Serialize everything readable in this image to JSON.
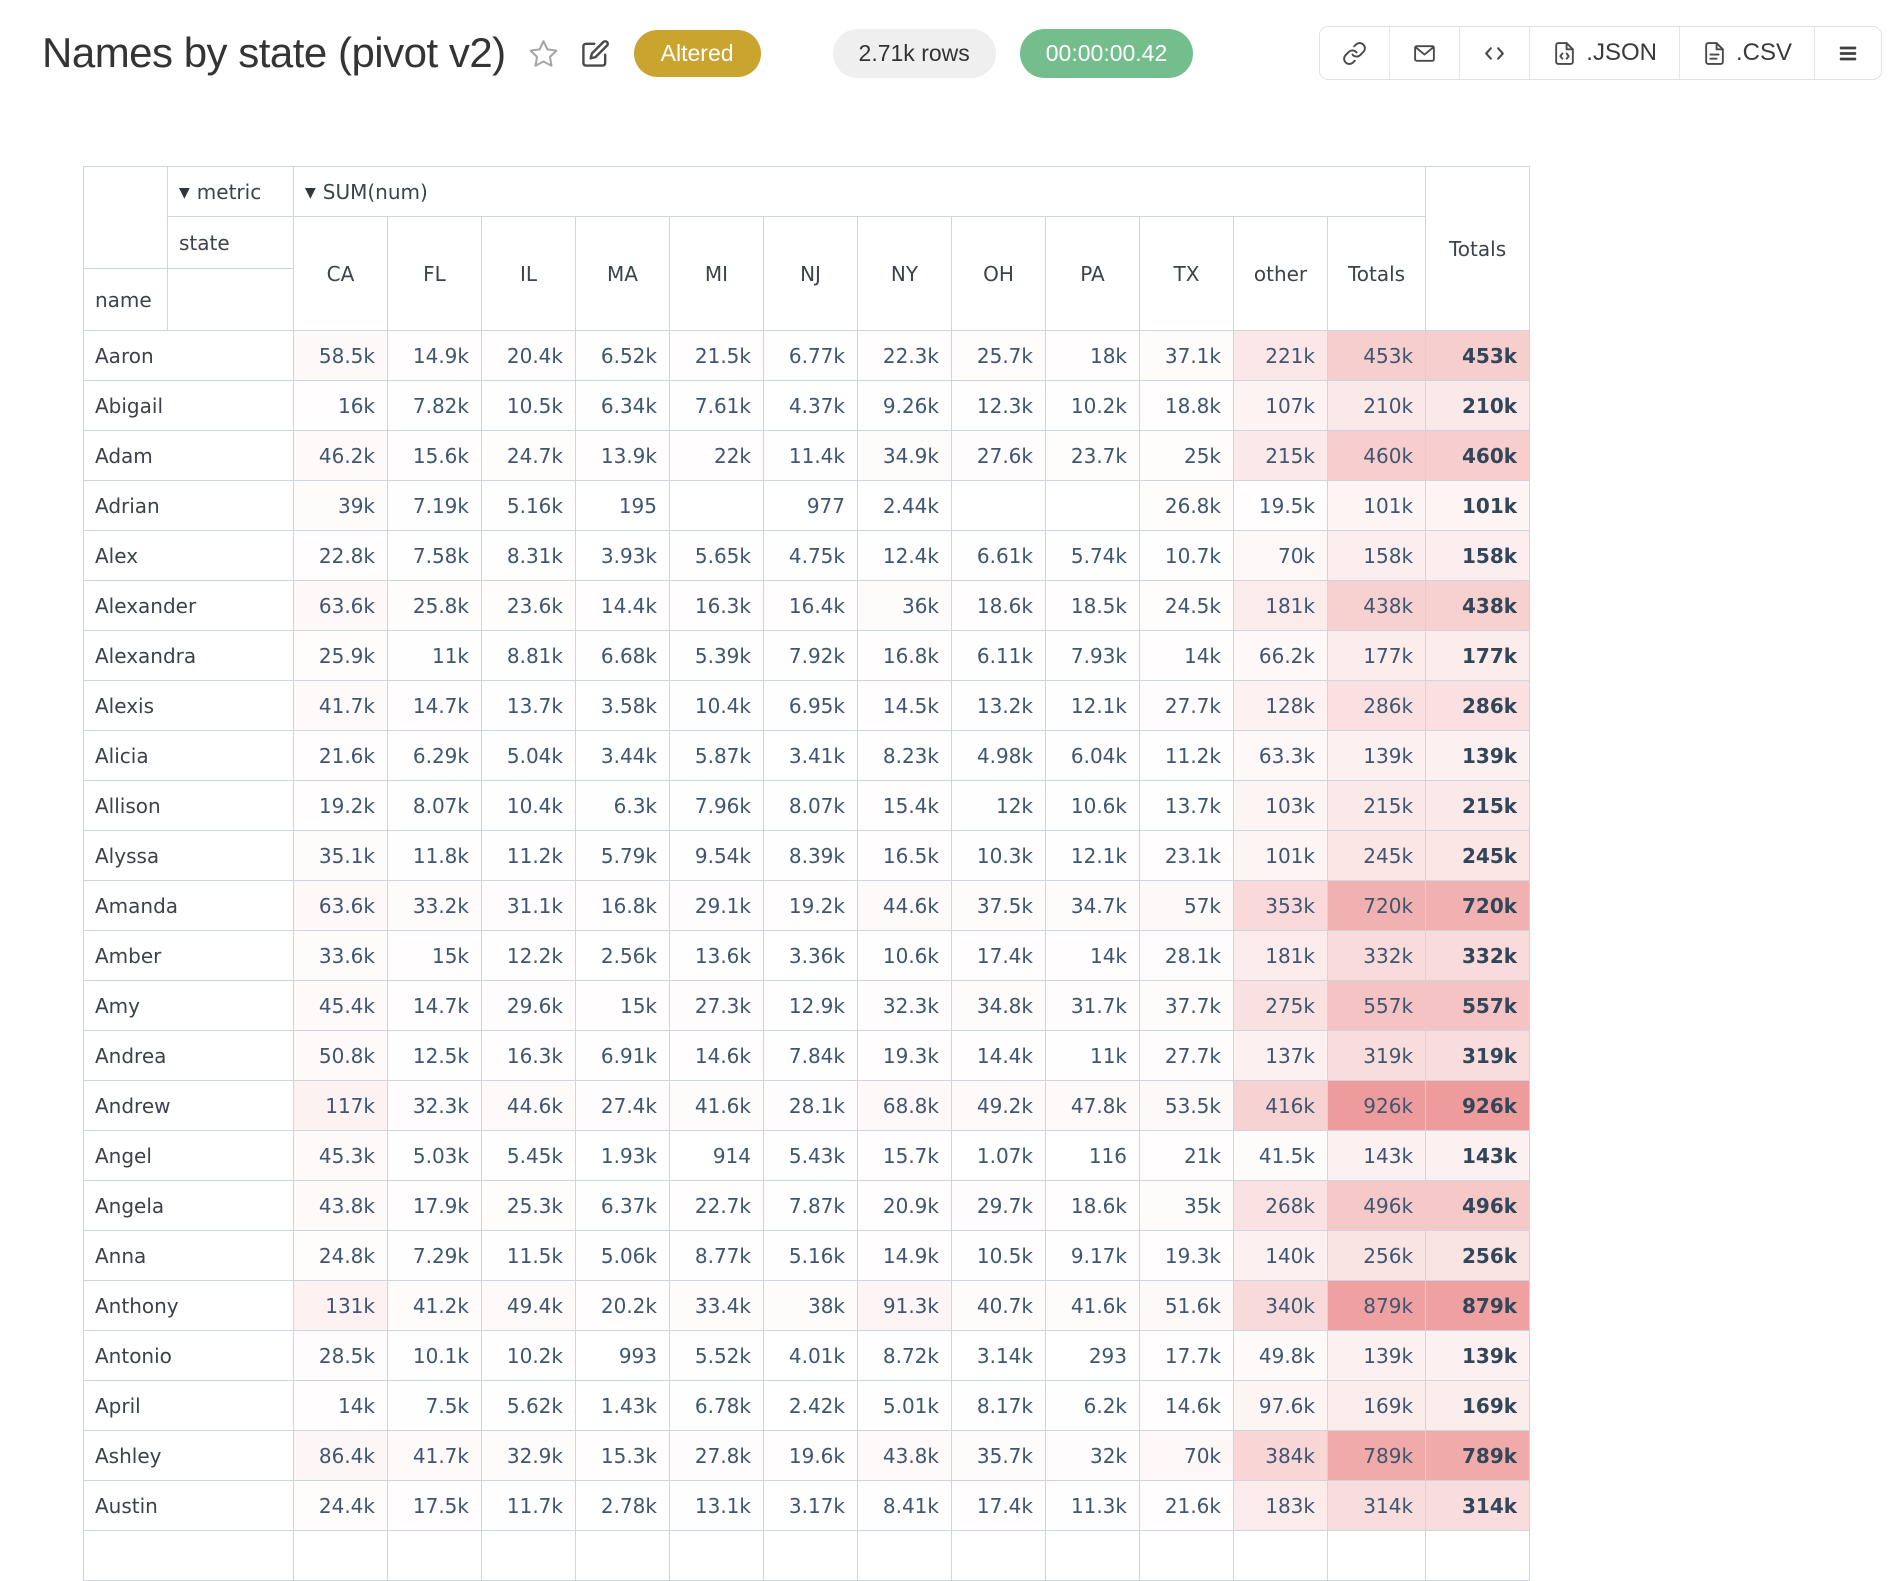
{
  "header": {
    "title": "Names by state (pivot v2)",
    "altered_badge": "Altered",
    "rows_pill": "2.71k rows",
    "timer_pill": "00:00:00.42",
    "json_button_label": ".JSON",
    "csv_button_label": ".CSV",
    "colors": {
      "altered_bg": "#c9a42f",
      "timer_bg": "#74bd8c",
      "rows_pill_bg": "#efefef"
    }
  },
  "pivot": {
    "sort_arrow": "▼",
    "metric_label": "metric",
    "sum_label": "SUM(num)",
    "state_label": "state",
    "name_label": "name",
    "inner_totals_label": "Totals",
    "outer_totals_label": "Totals",
    "columns": [
      "CA",
      "FL",
      "IL",
      "MA",
      "MI",
      "NJ",
      "NY",
      "OH",
      "PA",
      "TX",
      "other",
      "Totals"
    ],
    "heat_max_color": "#ee9b9b",
    "grid_color": "#ccd6e0",
    "rows": [
      {
        "name": "Aaron",
        "cells": [
          "58.5k",
          "14.9k",
          "20.4k",
          "6.52k",
          "21.5k",
          "6.77k",
          "22.3k",
          "25.7k",
          "18k",
          "37.1k",
          "221k",
          "453k"
        ],
        "total": "453k"
      },
      {
        "name": "Abigail",
        "cells": [
          "16k",
          "7.82k",
          "10.5k",
          "6.34k",
          "7.61k",
          "4.37k",
          "9.26k",
          "12.3k",
          "10.2k",
          "18.8k",
          "107k",
          "210k"
        ],
        "total": "210k"
      },
      {
        "name": "Adam",
        "cells": [
          "46.2k",
          "15.6k",
          "24.7k",
          "13.9k",
          "22k",
          "11.4k",
          "34.9k",
          "27.6k",
          "23.7k",
          "25k",
          "215k",
          "460k"
        ],
        "total": "460k"
      },
      {
        "name": "Adrian",
        "cells": [
          "39k",
          "7.19k",
          "5.16k",
          "195",
          "",
          "977",
          "2.44k",
          "",
          "",
          "26.8k",
          "19.5k",
          "101k"
        ],
        "total": "101k"
      },
      {
        "name": "Alex",
        "cells": [
          "22.8k",
          "7.58k",
          "8.31k",
          "3.93k",
          "5.65k",
          "4.75k",
          "12.4k",
          "6.61k",
          "5.74k",
          "10.7k",
          "70k",
          "158k"
        ],
        "total": "158k"
      },
      {
        "name": "Alexander",
        "cells": [
          "63.6k",
          "25.8k",
          "23.6k",
          "14.4k",
          "16.3k",
          "16.4k",
          "36k",
          "18.6k",
          "18.5k",
          "24.5k",
          "181k",
          "438k"
        ],
        "total": "438k"
      },
      {
        "name": "Alexandra",
        "cells": [
          "25.9k",
          "11k",
          "8.81k",
          "6.68k",
          "5.39k",
          "7.92k",
          "16.8k",
          "6.11k",
          "7.93k",
          "14k",
          "66.2k",
          "177k"
        ],
        "total": "177k"
      },
      {
        "name": "Alexis",
        "cells": [
          "41.7k",
          "14.7k",
          "13.7k",
          "3.58k",
          "10.4k",
          "6.95k",
          "14.5k",
          "13.2k",
          "12.1k",
          "27.7k",
          "128k",
          "286k"
        ],
        "total": "286k"
      },
      {
        "name": "Alicia",
        "cells": [
          "21.6k",
          "6.29k",
          "5.04k",
          "3.44k",
          "5.87k",
          "3.41k",
          "8.23k",
          "4.98k",
          "6.04k",
          "11.2k",
          "63.3k",
          "139k"
        ],
        "total": "139k"
      },
      {
        "name": "Allison",
        "cells": [
          "19.2k",
          "8.07k",
          "10.4k",
          "6.3k",
          "7.96k",
          "8.07k",
          "15.4k",
          "12k",
          "10.6k",
          "13.7k",
          "103k",
          "215k"
        ],
        "total": "215k"
      },
      {
        "name": "Alyssa",
        "cells": [
          "35.1k",
          "11.8k",
          "11.2k",
          "5.79k",
          "9.54k",
          "8.39k",
          "16.5k",
          "10.3k",
          "12.1k",
          "23.1k",
          "101k",
          "245k"
        ],
        "total": "245k"
      },
      {
        "name": "Amanda",
        "cells": [
          "63.6k",
          "33.2k",
          "31.1k",
          "16.8k",
          "29.1k",
          "19.2k",
          "44.6k",
          "37.5k",
          "34.7k",
          "57k",
          "353k",
          "720k"
        ],
        "total": "720k"
      },
      {
        "name": "Amber",
        "cells": [
          "33.6k",
          "15k",
          "12.2k",
          "2.56k",
          "13.6k",
          "3.36k",
          "10.6k",
          "17.4k",
          "14k",
          "28.1k",
          "181k",
          "332k"
        ],
        "total": "332k"
      },
      {
        "name": "Amy",
        "cells": [
          "45.4k",
          "14.7k",
          "29.6k",
          "15k",
          "27.3k",
          "12.9k",
          "32.3k",
          "34.8k",
          "31.7k",
          "37.7k",
          "275k",
          "557k"
        ],
        "total": "557k"
      },
      {
        "name": "Andrea",
        "cells": [
          "50.8k",
          "12.5k",
          "16.3k",
          "6.91k",
          "14.6k",
          "7.84k",
          "19.3k",
          "14.4k",
          "11k",
          "27.7k",
          "137k",
          "319k"
        ],
        "total": "319k"
      },
      {
        "name": "Andrew",
        "cells": [
          "117k",
          "32.3k",
          "44.6k",
          "27.4k",
          "41.6k",
          "28.1k",
          "68.8k",
          "49.2k",
          "47.8k",
          "53.5k",
          "416k",
          "926k"
        ],
        "total": "926k"
      },
      {
        "name": "Angel",
        "cells": [
          "45.3k",
          "5.03k",
          "5.45k",
          "1.93k",
          "914",
          "5.43k",
          "15.7k",
          "1.07k",
          "116",
          "21k",
          "41.5k",
          "143k"
        ],
        "total": "143k"
      },
      {
        "name": "Angela",
        "cells": [
          "43.8k",
          "17.9k",
          "25.3k",
          "6.37k",
          "22.7k",
          "7.87k",
          "20.9k",
          "29.7k",
          "18.6k",
          "35k",
          "268k",
          "496k"
        ],
        "total": "496k"
      },
      {
        "name": "Anna",
        "cells": [
          "24.8k",
          "7.29k",
          "11.5k",
          "5.06k",
          "8.77k",
          "5.16k",
          "14.9k",
          "10.5k",
          "9.17k",
          "19.3k",
          "140k",
          "256k"
        ],
        "total": "256k"
      },
      {
        "name": "Anthony",
        "cells": [
          "131k",
          "41.2k",
          "49.4k",
          "20.2k",
          "33.4k",
          "38k",
          "91.3k",
          "40.7k",
          "41.6k",
          "51.6k",
          "340k",
          "879k"
        ],
        "total": "879k"
      },
      {
        "name": "Antonio",
        "cells": [
          "28.5k",
          "10.1k",
          "10.2k",
          "993",
          "5.52k",
          "4.01k",
          "8.72k",
          "3.14k",
          "293",
          "17.7k",
          "49.8k",
          "139k"
        ],
        "total": "139k"
      },
      {
        "name": "April",
        "cells": [
          "14k",
          "7.5k",
          "5.62k",
          "1.43k",
          "6.78k",
          "2.42k",
          "5.01k",
          "8.17k",
          "6.2k",
          "14.6k",
          "97.6k",
          "169k"
        ],
        "total": "169k"
      },
      {
        "name": "Ashley",
        "cells": [
          "86.4k",
          "41.7k",
          "32.9k",
          "15.3k",
          "27.8k",
          "19.6k",
          "43.8k",
          "35.7k",
          "32k",
          "70k",
          "384k",
          "789k"
        ],
        "total": "789k"
      },
      {
        "name": "Austin",
        "cells": [
          "24.4k",
          "17.5k",
          "11.7k",
          "2.78k",
          "13.1k",
          "3.17k",
          "8.41k",
          "17.4k",
          "11.3k",
          "21.6k",
          "183k",
          "314k"
        ],
        "total": "314k"
      }
    ]
  }
}
